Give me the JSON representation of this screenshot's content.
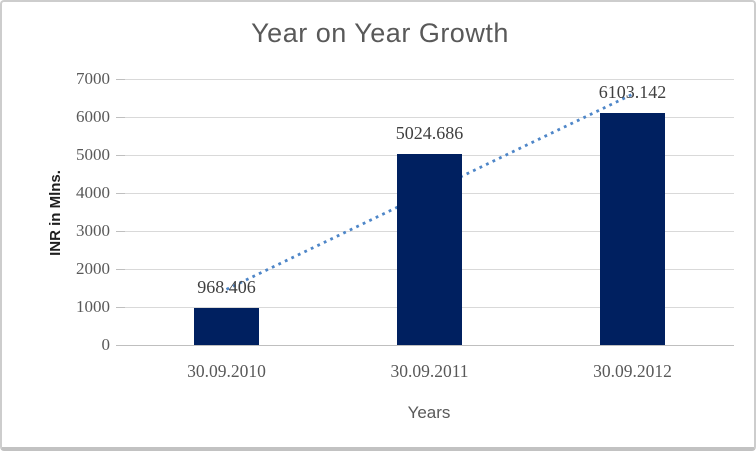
{
  "chart_data": {
    "type": "bar",
    "title": "Year on Year Growth",
    "xlabel": "Years",
    "ylabel": "INR in Mlns.",
    "categories": [
      "30.09.2010",
      "30.09.2011",
      "30.09.2012"
    ],
    "values": [
      968.406,
      5024.686,
      6103.142
    ],
    "value_labels": [
      "968.406",
      "5024.686",
      "6103.142"
    ],
    "ylim": [
      0,
      7000
    ],
    "ytick_step": 1000,
    "ytick_labels": [
      "0",
      "1000",
      "2000",
      "3000",
      "4000",
      "5000",
      "6000",
      "7000"
    ],
    "grid": true,
    "legend_position": "none",
    "trendline": {
      "type": "linear",
      "style": "dotted"
    },
    "colors": {
      "bar": "#002060",
      "trendline": "#4e86c8",
      "gridline": "#d9d9d9",
      "axis_line": "#bfbfbf",
      "title_text": "#595959",
      "axis_text": "#595959",
      "value_label_text": "#404040",
      "background": "#ffffff",
      "frame_border": "#cdcdcd"
    }
  }
}
